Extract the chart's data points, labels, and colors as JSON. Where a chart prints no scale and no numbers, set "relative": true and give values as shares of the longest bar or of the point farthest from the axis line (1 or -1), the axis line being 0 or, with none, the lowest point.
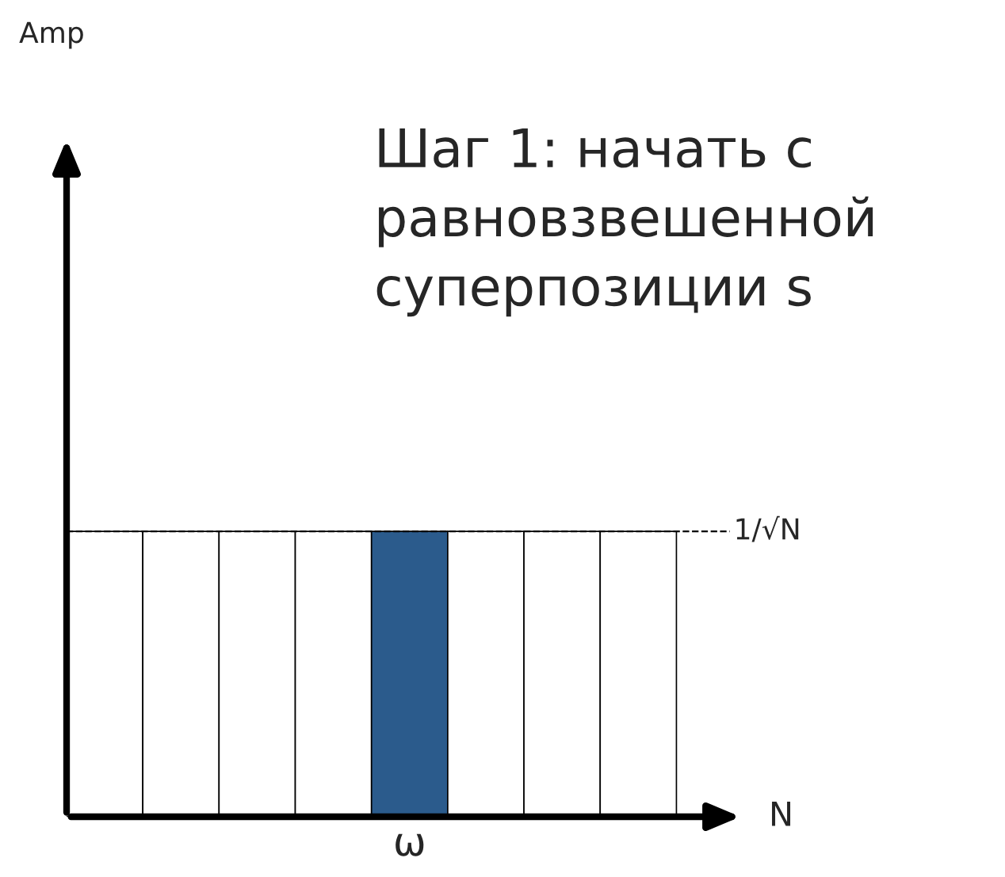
{
  "chart_data": {
    "type": "bar",
    "relative": true,
    "annotations": [
      "Шаг 1: начать с равновзвешенной суперпозиции s",
      "Amp"
    ],
    "xlabel": "N",
    "categories": [
      null,
      null,
      null,
      null,
      "ω",
      null,
      null,
      null
    ],
    "values": [
      1,
      1,
      1,
      1,
      1,
      1,
      1,
      1
    ],
    "colors": [
      "#ffffff",
      "#ffffff",
      "#ffffff",
      "#ffffff",
      "#2b5b8c",
      "#ffffff",
      "#ffffff",
      "#ffffff"
    ],
    "ref_lines": [
      {
        "axis": "y",
        "value": 1,
        "label": "1/√N",
        "color": "#000000",
        "line_style": "dashed"
      }
    ],
    "grid": false,
    "legend": false
  }
}
